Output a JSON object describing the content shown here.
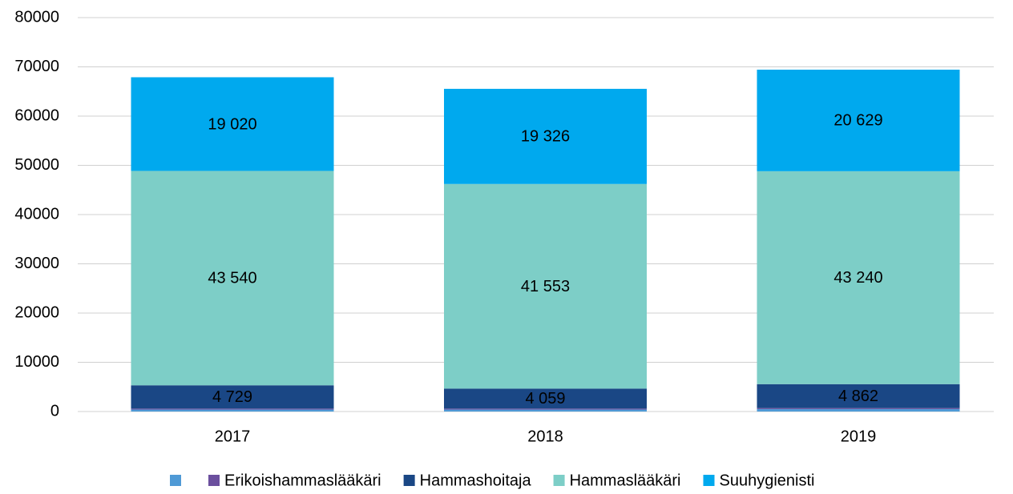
{
  "chart_data": {
    "type": "stacked_bar",
    "categories": [
      "2017",
      "2018",
      "2019"
    ],
    "series": [
      {
        "name": null,
        "color": "#4f9ad6",
        "values": [
          400,
          400,
          500
        ]
      },
      {
        "name": "Erikoishammaslääkäri",
        "color": "#6b4f9e",
        "values": [
          200,
          200,
          200
        ]
      },
      {
        "name": "Hammashoitaja",
        "color": "#1a4785",
        "values": [
          4729,
          4059,
          4862
        ],
        "value_labels": [
          "4 729",
          "4 059",
          "4 862"
        ]
      },
      {
        "name": "Hammaslääkäri",
        "color": "#7dcec7",
        "values": [
          43540,
          41553,
          43240
        ],
        "value_labels": [
          "43 540",
          "41 553",
          "43 240"
        ]
      },
      {
        "name": "Suuhygienisti",
        "color": "#00a9ee",
        "values": [
          19020,
          19326,
          20629
        ],
        "value_labels": [
          "19 020",
          "19 326",
          "20 629"
        ]
      }
    ],
    "ylim": [
      0,
      80000
    ],
    "yticks": [
      0,
      10000,
      20000,
      30000,
      40000,
      50000,
      60000,
      70000,
      80000
    ],
    "grid": true,
    "legend": "bottom"
  }
}
